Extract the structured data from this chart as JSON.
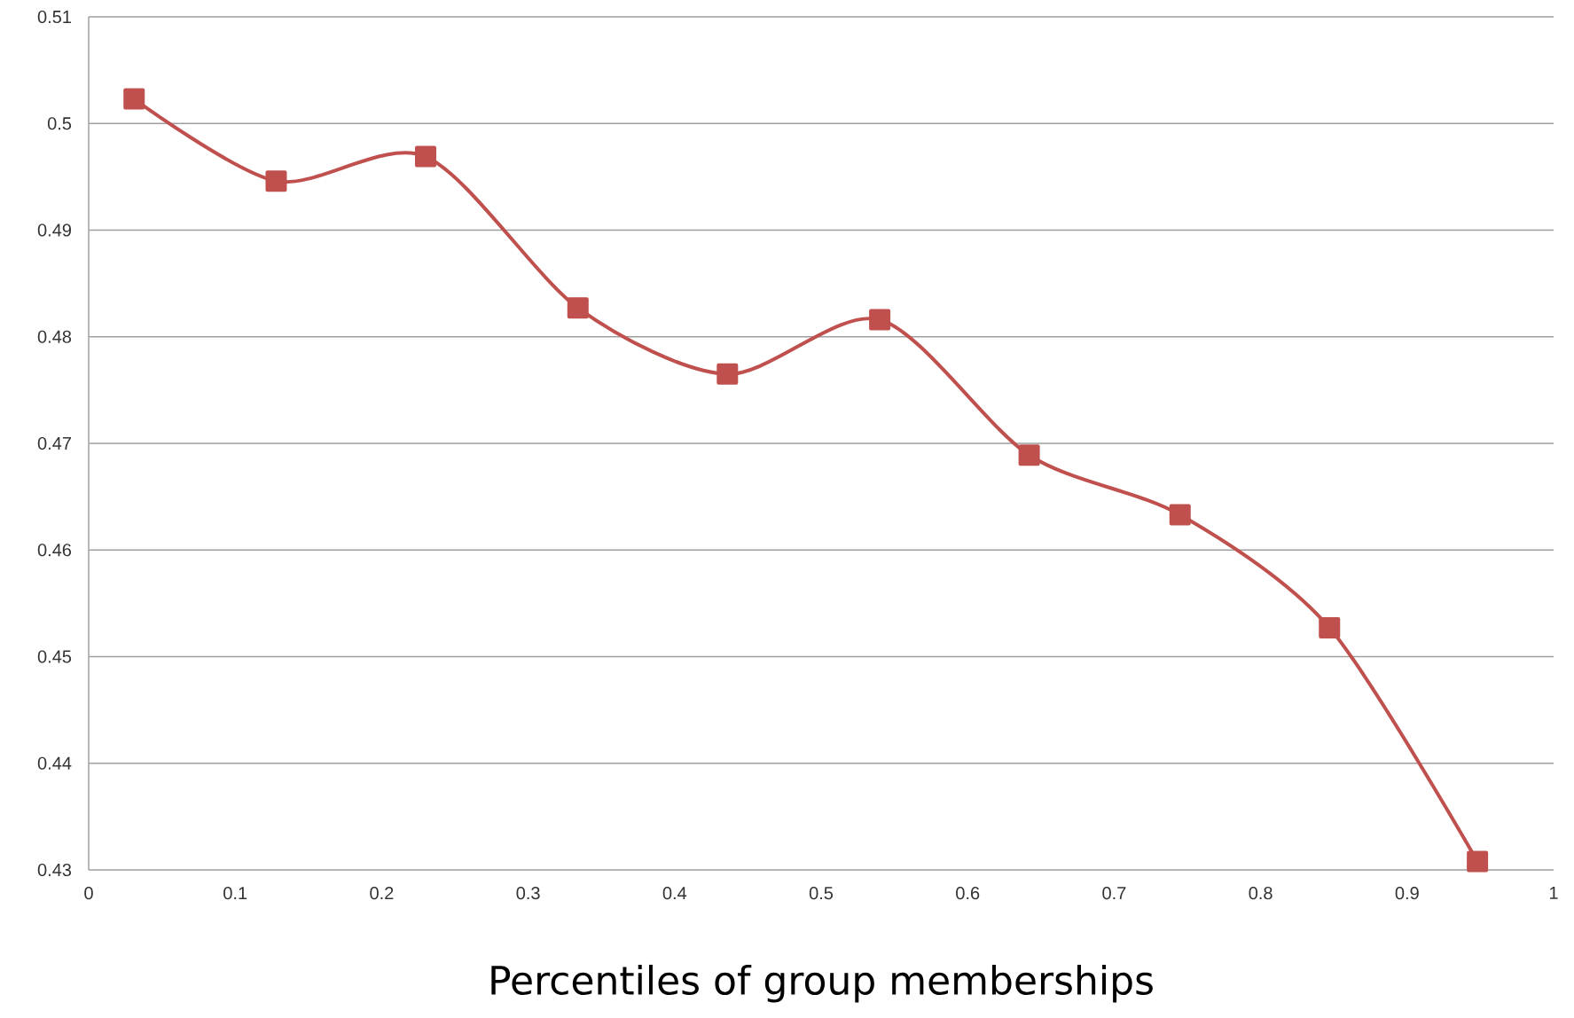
{
  "chart_data": {
    "type": "line",
    "xlabel": "Percentiles of group memberships",
    "x": [
      0.031,
      0.128,
      0.23,
      0.334,
      0.436,
      0.54,
      0.642,
      0.745,
      0.847,
      0.948
    ],
    "values": [
      0.5023,
      0.4946,
      0.4969,
      0.4827,
      0.4765,
      0.4816,
      0.4689,
      0.4633,
      0.4527,
      0.4308
    ],
    "color": "#c0504d",
    "marker": "square",
    "line_style": "solid",
    "grid": "y",
    "xlim": [
      0,
      1
    ],
    "xticks": [
      0,
      0.1,
      0.2,
      0.3,
      0.4,
      0.5,
      0.6,
      0.7,
      0.8,
      0.9,
      1
    ],
    "ylim": [
      0.43,
      0.51
    ],
    "yticks": [
      0.43,
      0.44,
      0.45,
      0.46,
      0.47,
      0.48,
      0.49,
      0.5,
      0.51
    ]
  }
}
